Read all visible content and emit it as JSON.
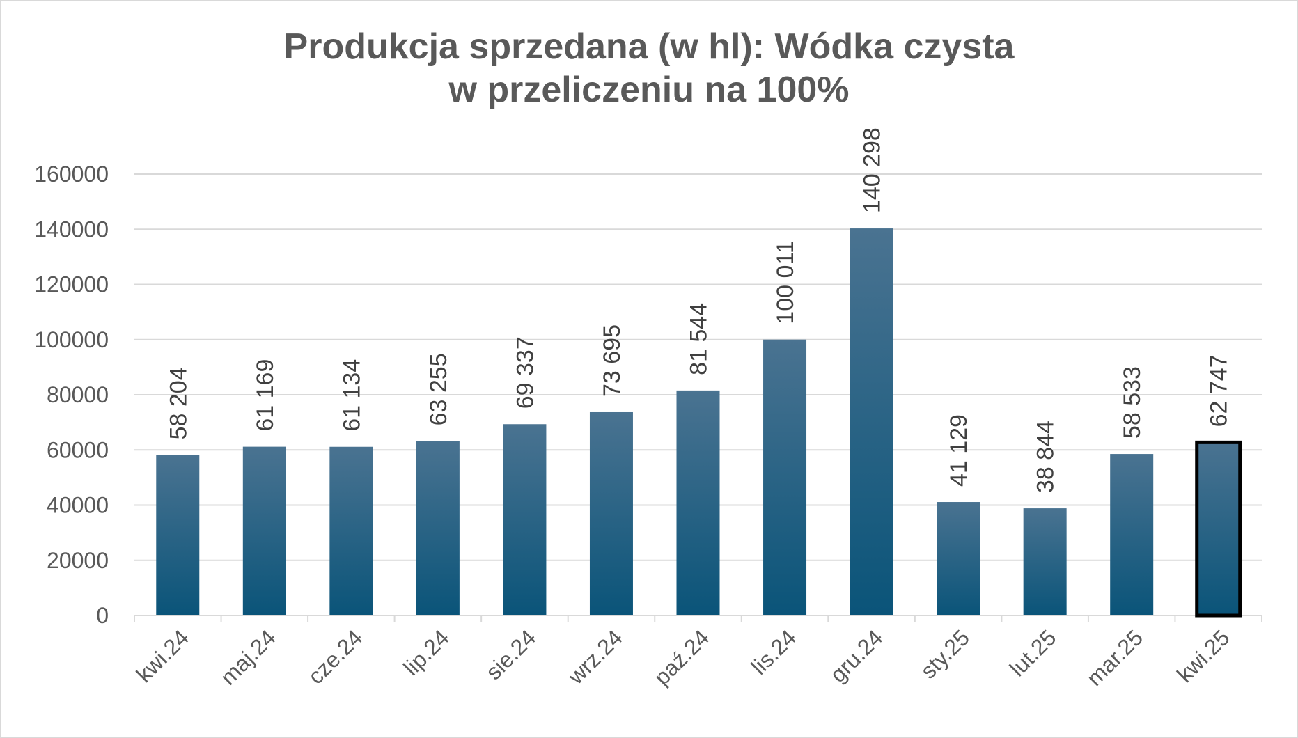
{
  "chart_data": {
    "type": "bar",
    "title_lines": [
      "Produkcja sprzedana (w hl): Wódka czysta",
      "w przeliczeniu na 100%"
    ],
    "categories": [
      "kwi.24",
      "maj.24",
      "cze.24",
      "lip.24",
      "sie.24",
      "wrz.24",
      "paź.24",
      "lis.24",
      "gru.24",
      "sty.25",
      "lut.25",
      "mar.25",
      "kwi.25"
    ],
    "values": [
      58204,
      61169,
      61134,
      63255,
      69337,
      73695,
      81544,
      100011,
      140298,
      41129,
      38844,
      58533,
      62747
    ],
    "data_labels": [
      "58 204",
      "61 169",
      "61 134",
      "63 255",
      "69 337",
      "73 695",
      "81 544",
      "100 011",
      "140 298",
      "41 129",
      "38 844",
      "58 533",
      "62 747"
    ],
    "y_ticks": [
      "0",
      "20000",
      "40000",
      "60000",
      "80000",
      "100000",
      "120000",
      "140000",
      "160000"
    ],
    "ylim": [
      0,
      160000
    ],
    "grid": true,
    "highlighted_category": "kwi.25",
    "colors": {
      "bar_top": "#4a7391",
      "bar_bottom": "#0a5479",
      "grid": "#d9d9d9",
      "text": "#595959",
      "highlight_border": "#000000"
    }
  }
}
